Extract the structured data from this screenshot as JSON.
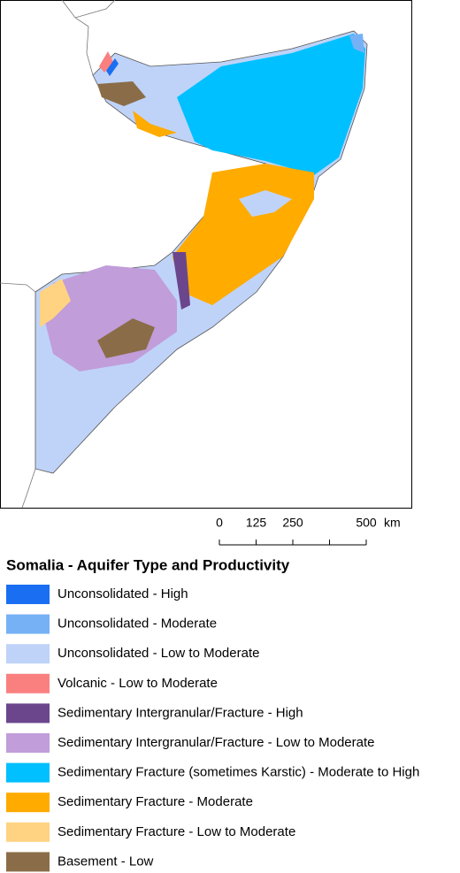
{
  "map": {
    "scale_bar": {
      "ticks": [
        0,
        125,
        250,
        {
          "value": 375,
          "label": null
        },
        500
      ],
      "unit": "km"
    }
  },
  "legend": {
    "title": "Somalia - Aquifer Type and Productivity",
    "items": [
      {
        "label": "Unconsolidated - High",
        "color": "#1a6ef2"
      },
      {
        "label": "Unconsolidated - Moderate",
        "color": "#76b1f5"
      },
      {
        "label": "Unconsolidated - Low to Moderate",
        "color": "#bfd3f8"
      },
      {
        "label": "Volcanic - Low to Moderate",
        "color": "#fa8080"
      },
      {
        "label": "Sedimentary Intergranular/Fracture - High",
        "color": "#6b468c"
      },
      {
        "label": "Sedimentary Intergranular/Fracture - Low to Moderate",
        "color": "#c19dda"
      },
      {
        "label": "Sedimentary Fracture (sometimes Karstic) - Moderate to High",
        "color": "#00c0ff"
      },
      {
        "label": "Sedimentary Fracture - Moderate",
        "color": "#ffab00"
      },
      {
        "label": "Sedimentary Fracture - Low to Moderate",
        "color": "#ffd381"
      },
      {
        "label": "Basement - Low",
        "color": "#8a6d48"
      }
    ]
  }
}
